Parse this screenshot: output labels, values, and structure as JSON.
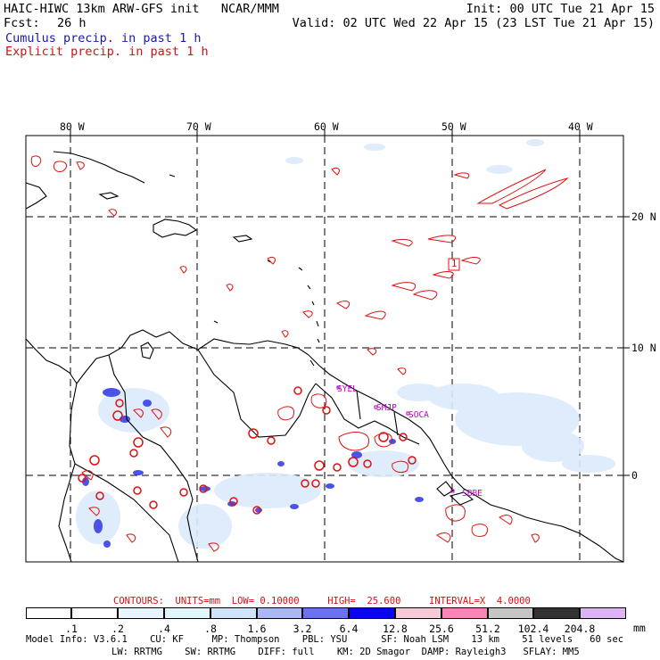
{
  "header": {
    "model_title": "HAIC-HIWC 13km ARW-GFS init   NCAR/MMM",
    "init_time": "Init: 00 UTC Tue 21 Apr 15",
    "forecast_label": "Fcst:",
    "forecast_hours": "26 h",
    "valid_time": "Valid: 02 UTC Wed 22 Apr 15 (23 LST Tue 21 Apr 15)",
    "legend_cumulus": "Cumulus precip. in past 1 h",
    "legend_explicit": "Explicit precip. in past 1 h"
  },
  "map": {
    "lon_labels": [
      "80 W",
      "70 W",
      "60 W",
      "50 W",
      "40 W"
    ],
    "lat_labels": [
      "20 N",
      "10 N",
      "0"
    ],
    "station_labels": [
      "SYEL",
      "SMJP",
      "SOCA",
      "SBBE"
    ],
    "max_marker": "1",
    "colors": {
      "coast": "#000000",
      "grid": "#000000",
      "explicit": "#e01010",
      "stations": "#c000c0",
      "cumulus_dark": "#1e28e6"
    }
  },
  "contours_info": {
    "text": "CONTOURS:  UNITS=mm  LOW= 0.10000     HIGH=  25.600     INTERVAL=X  4.0000"
  },
  "colorbar": {
    "units": "mm",
    "labels": [
      ".1",
      ".2",
      ".4",
      ".8",
      "1.6",
      "3.2",
      "6.4",
      "12.8",
      "25.6",
      "51.2",
      "102.4",
      "204.8"
    ],
    "colors": [
      "#ffffff",
      "#ffffff",
      "#e8f4ff",
      "#dff6fb",
      "#cfe3fb",
      "#aab9f5",
      "#6c72ec",
      "#3a3ae6",
      "#0a05ee",
      "#f7c9d7",
      "#f786b7",
      "#c5c5c5",
      "#333333",
      "#dcb3f5"
    ]
  },
  "footer": {
    "line1": "Model Info: V3.6.1    CU: KF     MP: Thompson    PBL: YSU      SF: Noah LSM    13 km    51 levels   60 sec",
    "line2": "LW: RRTMG    SW: RRTMG    DIFF: full    KM: 2D Smagor  DAMP: Rayleigh3   SFLAY: MM5"
  }
}
